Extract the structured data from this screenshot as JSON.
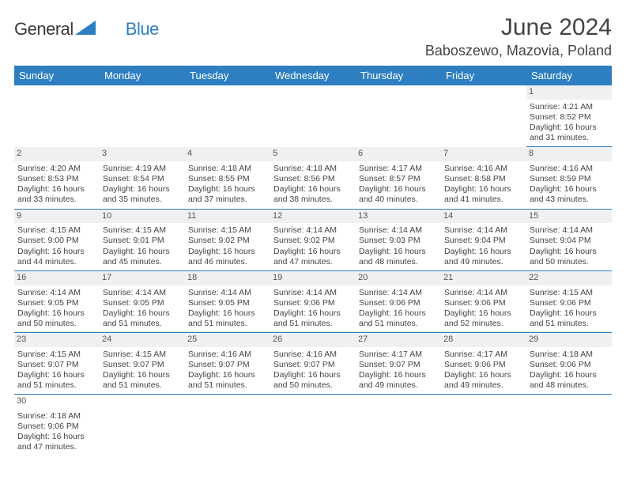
{
  "logo": {
    "part1": "General",
    "part2": "Blue"
  },
  "title": "June 2024",
  "location": "Baboszewo, Mazovia, Poland",
  "colors": {
    "header_bg": "#2d7fc1",
    "header_text": "#ffffff",
    "daynum_bg": "#f0f0f0",
    "border": "#2d7fc1"
  },
  "day_headers": [
    "Sunday",
    "Monday",
    "Tuesday",
    "Wednesday",
    "Thursday",
    "Friday",
    "Saturday"
  ],
  "weeks": [
    [
      null,
      null,
      null,
      null,
      null,
      null,
      {
        "n": "1",
        "sr": "4:21 AM",
        "ss": "8:52 PM",
        "dl": "16 hours and 31 minutes."
      }
    ],
    [
      {
        "n": "2",
        "sr": "4:20 AM",
        "ss": "8:53 PM",
        "dl": "16 hours and 33 minutes."
      },
      {
        "n": "3",
        "sr": "4:19 AM",
        "ss": "8:54 PM",
        "dl": "16 hours and 35 minutes."
      },
      {
        "n": "4",
        "sr": "4:18 AM",
        "ss": "8:55 PM",
        "dl": "16 hours and 37 minutes."
      },
      {
        "n": "5",
        "sr": "4:18 AM",
        "ss": "8:56 PM",
        "dl": "16 hours and 38 minutes."
      },
      {
        "n": "6",
        "sr": "4:17 AM",
        "ss": "8:57 PM",
        "dl": "16 hours and 40 minutes."
      },
      {
        "n": "7",
        "sr": "4:16 AM",
        "ss": "8:58 PM",
        "dl": "16 hours and 41 minutes."
      },
      {
        "n": "8",
        "sr": "4:16 AM",
        "ss": "8:59 PM",
        "dl": "16 hours and 43 minutes."
      }
    ],
    [
      {
        "n": "9",
        "sr": "4:15 AM",
        "ss": "9:00 PM",
        "dl": "16 hours and 44 minutes."
      },
      {
        "n": "10",
        "sr": "4:15 AM",
        "ss": "9:01 PM",
        "dl": "16 hours and 45 minutes."
      },
      {
        "n": "11",
        "sr": "4:15 AM",
        "ss": "9:02 PM",
        "dl": "16 hours and 46 minutes."
      },
      {
        "n": "12",
        "sr": "4:14 AM",
        "ss": "9:02 PM",
        "dl": "16 hours and 47 minutes."
      },
      {
        "n": "13",
        "sr": "4:14 AM",
        "ss": "9:03 PM",
        "dl": "16 hours and 48 minutes."
      },
      {
        "n": "14",
        "sr": "4:14 AM",
        "ss": "9:04 PM",
        "dl": "16 hours and 49 minutes."
      },
      {
        "n": "15",
        "sr": "4:14 AM",
        "ss": "9:04 PM",
        "dl": "16 hours and 50 minutes."
      }
    ],
    [
      {
        "n": "16",
        "sr": "4:14 AM",
        "ss": "9:05 PM",
        "dl": "16 hours and 50 minutes."
      },
      {
        "n": "17",
        "sr": "4:14 AM",
        "ss": "9:05 PM",
        "dl": "16 hours and 51 minutes."
      },
      {
        "n": "18",
        "sr": "4:14 AM",
        "ss": "9:05 PM",
        "dl": "16 hours and 51 minutes."
      },
      {
        "n": "19",
        "sr": "4:14 AM",
        "ss": "9:06 PM",
        "dl": "16 hours and 51 minutes."
      },
      {
        "n": "20",
        "sr": "4:14 AM",
        "ss": "9:06 PM",
        "dl": "16 hours and 51 minutes."
      },
      {
        "n": "21",
        "sr": "4:14 AM",
        "ss": "9:06 PM",
        "dl": "16 hours and 52 minutes."
      },
      {
        "n": "22",
        "sr": "4:15 AM",
        "ss": "9:06 PM",
        "dl": "16 hours and 51 minutes."
      }
    ],
    [
      {
        "n": "23",
        "sr": "4:15 AM",
        "ss": "9:07 PM",
        "dl": "16 hours and 51 minutes."
      },
      {
        "n": "24",
        "sr": "4:15 AM",
        "ss": "9:07 PM",
        "dl": "16 hours and 51 minutes."
      },
      {
        "n": "25",
        "sr": "4:16 AM",
        "ss": "9:07 PM",
        "dl": "16 hours and 51 minutes."
      },
      {
        "n": "26",
        "sr": "4:16 AM",
        "ss": "9:07 PM",
        "dl": "16 hours and 50 minutes."
      },
      {
        "n": "27",
        "sr": "4:17 AM",
        "ss": "9:07 PM",
        "dl": "16 hours and 49 minutes."
      },
      {
        "n": "28",
        "sr": "4:17 AM",
        "ss": "9:06 PM",
        "dl": "16 hours and 49 minutes."
      },
      {
        "n": "29",
        "sr": "4:18 AM",
        "ss": "9:06 PM",
        "dl": "16 hours and 48 minutes."
      }
    ],
    [
      {
        "n": "30",
        "sr": "4:18 AM",
        "ss": "9:06 PM",
        "dl": "16 hours and 47 minutes.",
        "nogrey": true
      },
      null,
      null,
      null,
      null,
      null,
      null
    ]
  ],
  "labels": {
    "sunrise": "Sunrise:",
    "sunset": "Sunset:",
    "daylight": "Daylight:"
  }
}
